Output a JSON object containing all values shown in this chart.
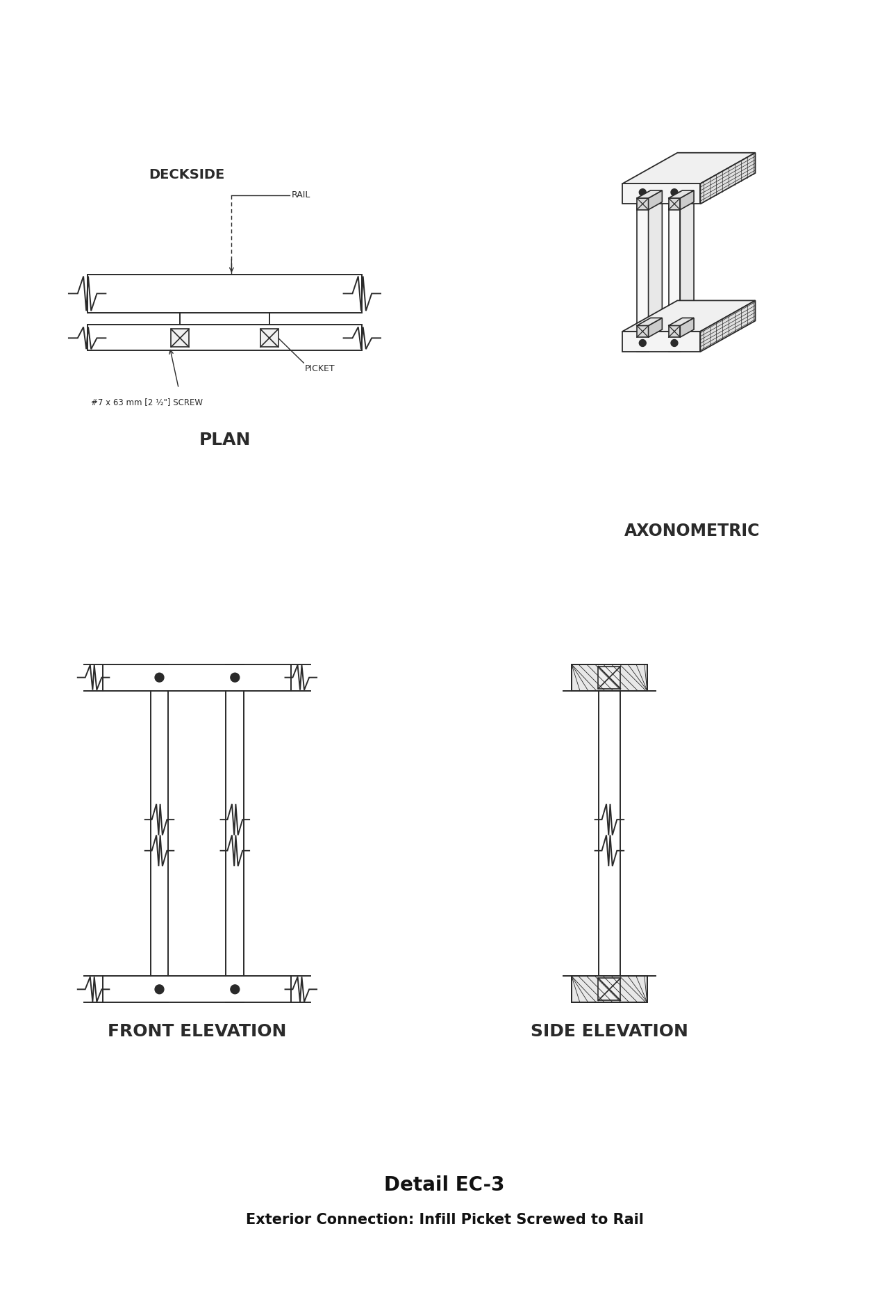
{
  "title": "Detail EC-3",
  "subtitle": "Exterior Connection: Infill Picket Screwed to Rail",
  "bg_color": "#ffffff",
  "line_color": "#2a2a2a",
  "label_plan": "PLAN",
  "label_front": "FRONT ELEVATION",
  "label_side": "SIDE ELEVATION",
  "label_axon": "AXONOMETRIC",
  "label_deckside": "DECKSIDE",
  "label_rail": "RAIL",
  "label_picket": "PICKET",
  "label_screw": "#7 x 63 mm [2 ½\"] SCREW",
  "title_fontsize": 20,
  "subtitle_fontsize": 15,
  "section_label_fontsize": 16
}
